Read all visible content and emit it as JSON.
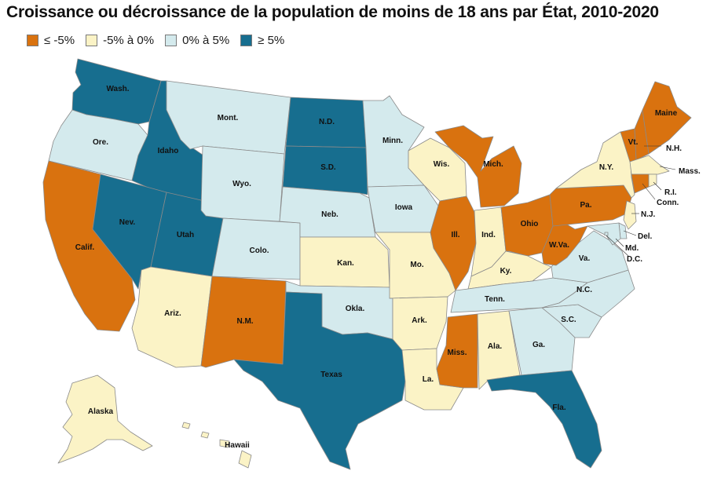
{
  "title": "Croissance ou décroissance de la population de moins de 18 ans par État, 2010-2020",
  "legend": [
    {
      "key": "dec5",
      "label": "≤ -5%",
      "color": "#d9720f"
    },
    {
      "key": "dec0",
      "label": "-5% à 0%",
      "color": "#fbf3c6"
    },
    {
      "key": "inc0",
      "label": "0% à 5%",
      "color": "#d4eaed"
    },
    {
      "key": "inc5",
      "label": "≥ 5%",
      "color": "#176e8f"
    }
  ],
  "states": [
    {
      "id": "wa",
      "label": "Wash.",
      "cat": "inc5"
    },
    {
      "id": "or",
      "label": "Ore.",
      "cat": "inc0"
    },
    {
      "id": "ca",
      "label": "Calif.",
      "cat": "dec5"
    },
    {
      "id": "id",
      "label": "Idaho",
      "cat": "inc5"
    },
    {
      "id": "nv",
      "label": "Nev.",
      "cat": "inc5"
    },
    {
      "id": "ut",
      "label": "Utah",
      "cat": "inc5"
    },
    {
      "id": "az",
      "label": "Ariz.",
      "cat": "dec0"
    },
    {
      "id": "mt",
      "label": "Mont.",
      "cat": "inc0"
    },
    {
      "id": "wy",
      "label": "Wyo.",
      "cat": "inc0"
    },
    {
      "id": "co",
      "label": "Colo.",
      "cat": "inc0"
    },
    {
      "id": "nm",
      "label": "N.M.",
      "cat": "dec5"
    },
    {
      "id": "nd",
      "label": "N.D.",
      "cat": "inc5"
    },
    {
      "id": "sd",
      "label": "S.D.",
      "cat": "inc5"
    },
    {
      "id": "ne",
      "label": "Neb.",
      "cat": "inc0"
    },
    {
      "id": "ks",
      "label": "Kan.",
      "cat": "dec0"
    },
    {
      "id": "ok",
      "label": "Okla.",
      "cat": "inc0"
    },
    {
      "id": "tx",
      "label": "Texas",
      "cat": "inc5"
    },
    {
      "id": "mn",
      "label": "Minn.",
      "cat": "inc0"
    },
    {
      "id": "ia",
      "label": "Iowa",
      "cat": "inc0"
    },
    {
      "id": "mo",
      "label": "Mo.",
      "cat": "dec0"
    },
    {
      "id": "ar",
      "label": "Ark.",
      "cat": "dec0"
    },
    {
      "id": "la",
      "label": "La.",
      "cat": "dec0"
    },
    {
      "id": "wi",
      "label": "Wis.",
      "cat": "dec0"
    },
    {
      "id": "il",
      "label": "Ill.",
      "cat": "dec5"
    },
    {
      "id": "mi",
      "label": "Mich.",
      "cat": "dec5"
    },
    {
      "id": "in",
      "label": "Ind.",
      "cat": "dec0"
    },
    {
      "id": "oh",
      "label": "Ohio",
      "cat": "dec5"
    },
    {
      "id": "ky",
      "label": "Ky.",
      "cat": "dec0"
    },
    {
      "id": "tn",
      "label": "Tenn.",
      "cat": "inc0"
    },
    {
      "id": "ms",
      "label": "Miss.",
      "cat": "dec5"
    },
    {
      "id": "al",
      "label": "Ala.",
      "cat": "dec0"
    },
    {
      "id": "ga",
      "label": "Ga.",
      "cat": "inc0"
    },
    {
      "id": "fl",
      "label": "Fla.",
      "cat": "inc5"
    },
    {
      "id": "sc",
      "label": "S.C.",
      "cat": "inc0"
    },
    {
      "id": "nc",
      "label": "N.C.",
      "cat": "inc0"
    },
    {
      "id": "va",
      "label": "Va.",
      "cat": "inc0"
    },
    {
      "id": "wv",
      "label": "W.Va.",
      "cat": "dec5"
    },
    {
      "id": "pa",
      "label": "Pa.",
      "cat": "dec5"
    },
    {
      "id": "ny",
      "label": "N.Y.",
      "cat": "dec0"
    },
    {
      "id": "vt",
      "label": "Vt.",
      "cat": "dec5"
    },
    {
      "id": "nh",
      "label": "N.H.",
      "cat": "dec5"
    },
    {
      "id": "me",
      "label": "Maine",
      "cat": "dec5"
    },
    {
      "id": "ma",
      "label": "Mass.",
      "cat": "dec0"
    },
    {
      "id": "ri",
      "label": "R.I.",
      "cat": "dec0"
    },
    {
      "id": "ct",
      "label": "Conn.",
      "cat": "dec5"
    },
    {
      "id": "nj",
      "label": "N.J.",
      "cat": "dec0"
    },
    {
      "id": "de",
      "label": "Del.",
      "cat": "inc0"
    },
    {
      "id": "md",
      "label": "Md.",
      "cat": "inc0"
    },
    {
      "id": "dc",
      "label": "D.C.",
      "cat": "inc0"
    },
    {
      "id": "ak",
      "label": "Alaska",
      "cat": "dec0"
    },
    {
      "id": "hi",
      "label": "Hawaii",
      "cat": "dec0"
    }
  ]
}
